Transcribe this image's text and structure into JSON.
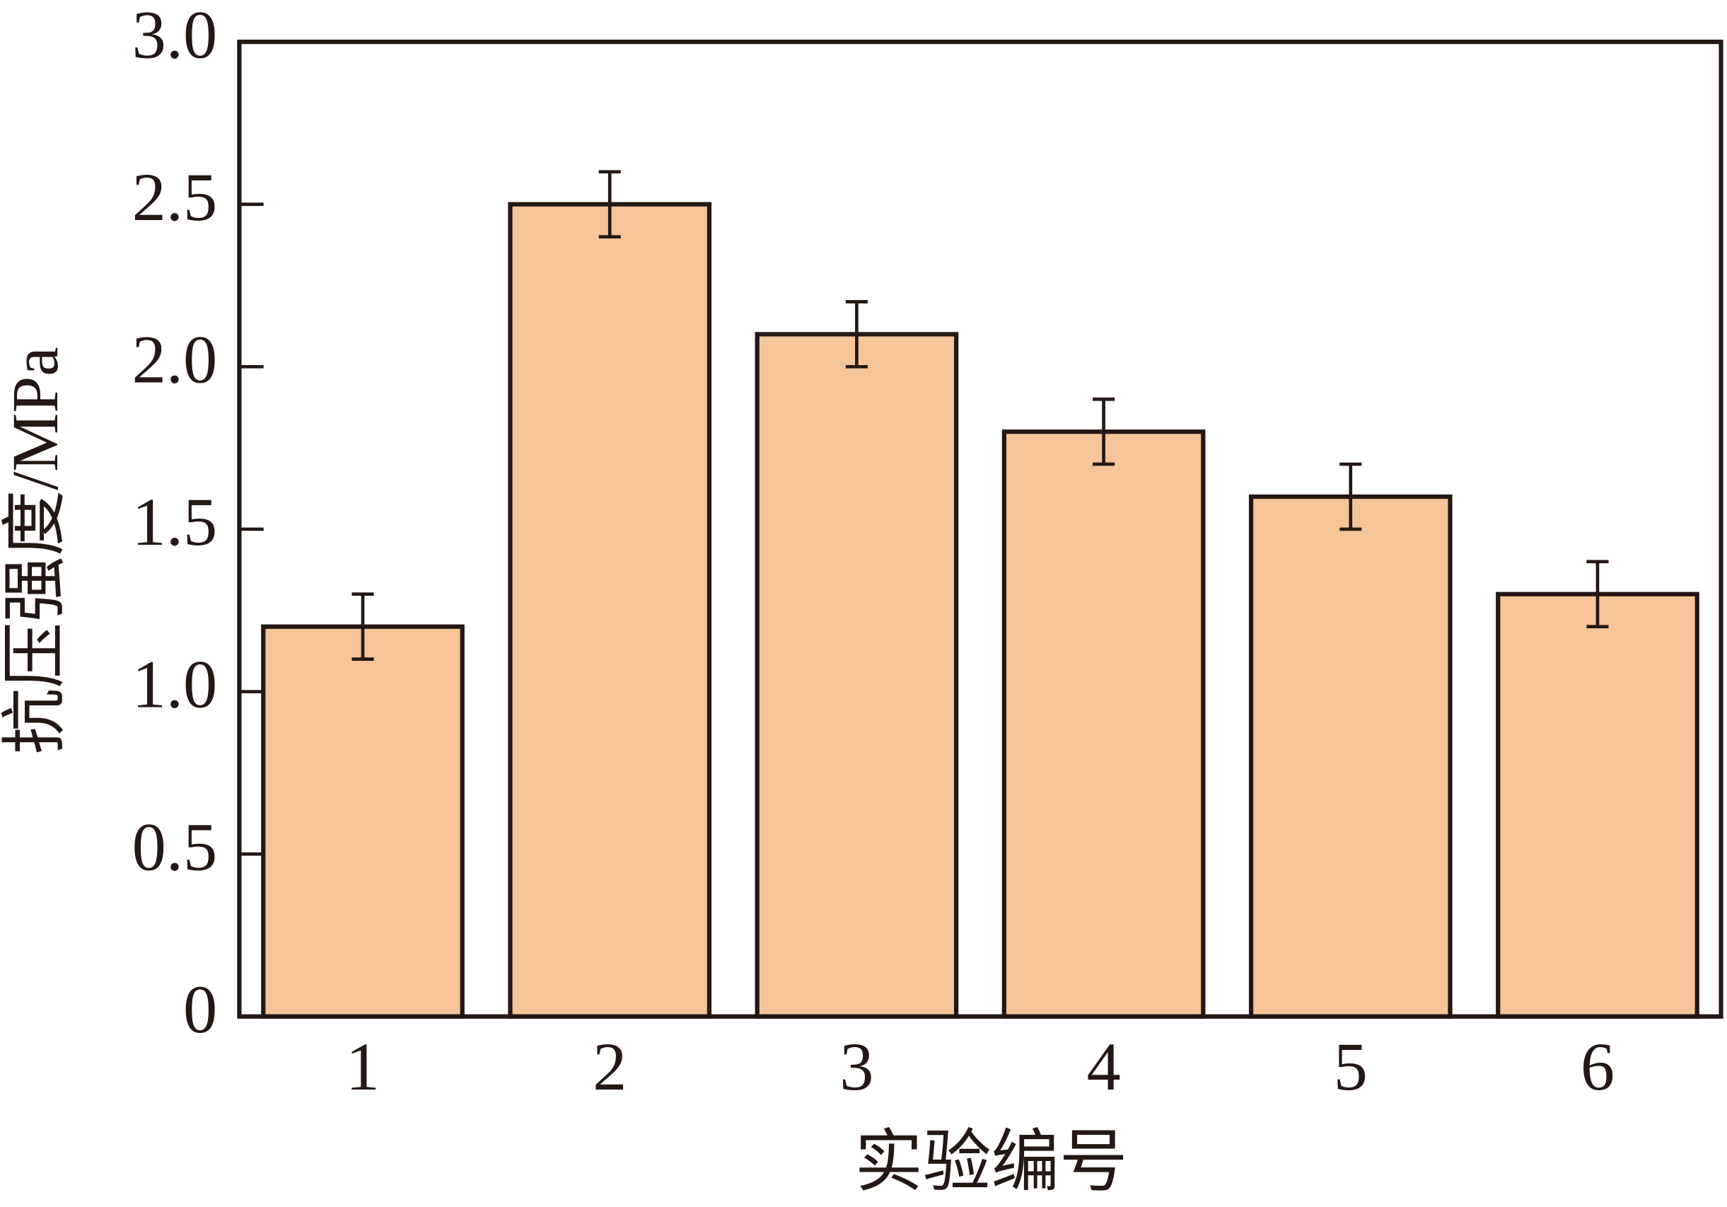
{
  "chart_data": {
    "type": "bar",
    "x_label": "实验编号",
    "y_label": "抗压强度/MPa",
    "categories": [
      "1",
      "2",
      "3",
      "4",
      "5",
      "6"
    ],
    "values": [
      1.2,
      2.5,
      2.1,
      1.8,
      1.6,
      1.3
    ],
    "errors": [
      0.1,
      0.1,
      0.1,
      0.1,
      0.1,
      0.1
    ],
    "color": "#f5c599",
    "edge_color": "#231815",
    "ylim": [
      0,
      3
    ],
    "yticks": [
      0,
      0.5,
      {
        "value": 1,
        "label": "1.0"
      },
      1.5,
      {
        "value": 2,
        "label": "2.0"
      },
      2.5,
      {
        "value": 3,
        "label": "3.0"
      }
    ],
    "grid": false
  }
}
